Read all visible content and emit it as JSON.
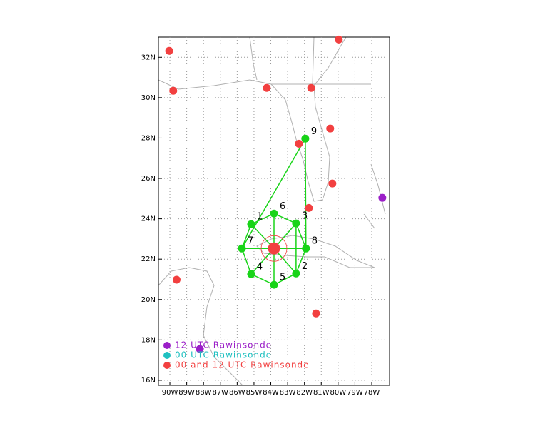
{
  "map": {
    "xlim": [
      -90.68,
      -76.94
    ],
    "ylim": [
      15.75,
      33.0
    ],
    "grid": true,
    "xticks": [
      {
        "value": -90,
        "label": "90W"
      },
      {
        "value": -89,
        "label": "89W"
      },
      {
        "value": -88,
        "label": "88W"
      },
      {
        "value": -87,
        "label": "87W"
      },
      {
        "value": -86,
        "label": "86W"
      },
      {
        "value": -85,
        "label": "85W"
      },
      {
        "value": -84,
        "label": "84W"
      },
      {
        "value": -83,
        "label": "83W"
      },
      {
        "value": -82,
        "label": "82W"
      },
      {
        "value": -81,
        "label": "81W"
      },
      {
        "value": -80,
        "label": "80W"
      },
      {
        "value": -79,
        "label": "79W"
      },
      {
        "value": -78,
        "label": "78W"
      }
    ],
    "yticks": [
      {
        "value": 16,
        "label": "16N"
      },
      {
        "value": 18,
        "label": "18N"
      },
      {
        "value": 20,
        "label": "20N"
      },
      {
        "value": 22,
        "label": "22N"
      },
      {
        "value": 24,
        "label": "24N"
      },
      {
        "value": 26,
        "label": "26N"
      },
      {
        "value": 28,
        "label": "28N"
      },
      {
        "value": 30,
        "label": "30N"
      },
      {
        "value": 32,
        "label": "32N"
      }
    ],
    "legend": [
      {
        "label": "12 UTC Rawinsonde",
        "color": "#9b1fc8",
        "points": [
          {
            "lon": -77.37,
            "lat": 25.04
          },
          {
            "lon": -88.22,
            "lat": 17.55
          }
        ]
      },
      {
        "label": "00 UTC Rawinsonde",
        "color": "#1fc0c0",
        "points": []
      },
      {
        "label": "00 and 12 UTC Rawinsonde",
        "color": "#f24040",
        "points": [
          {
            "lon": -90.04,
            "lat": 32.32
          },
          {
            "lon": -89.8,
            "lat": 30.34
          },
          {
            "lon": -84.24,
            "lat": 30.48
          },
          {
            "lon": -81.6,
            "lat": 30.48
          },
          {
            "lon": -79.96,
            "lat": 32.88
          },
          {
            "lon": -80.47,
            "lat": 28.47
          },
          {
            "lon": -82.33,
            "lat": 27.72
          },
          {
            "lon": -80.34,
            "lat": 25.75
          },
          {
            "lon": -81.74,
            "lat": 24.54
          },
          {
            "lon": -89.6,
            "lat": 20.98
          },
          {
            "lon": -81.31,
            "lat": 19.31
          }
        ]
      }
    ],
    "center": {
      "lon": -83.81,
      "lat": 22.53,
      "color": "#f24040"
    },
    "sites": {
      "color": "#18d418",
      "points": [
        {
          "label": "1",
          "lon": -85.17,
          "lat": 23.73
        },
        {
          "label": "2",
          "lon": -82.5,
          "lat": 21.29
        },
        {
          "label": "3",
          "lon": -82.5,
          "lat": 23.77
        },
        {
          "label": "4",
          "lon": -85.17,
          "lat": 21.26
        },
        {
          "label": "5",
          "lon": -83.81,
          "lat": 20.73
        },
        {
          "label": "6",
          "lon": -83.81,
          "lat": 24.26
        },
        {
          "label": "7",
          "lon": -85.72,
          "lat": 22.53
        },
        {
          "label": "8",
          "lon": -81.91,
          "lat": 22.53
        },
        {
          "label": "9",
          "lon": -81.95,
          "lat": 27.97
        }
      ]
    }
  }
}
